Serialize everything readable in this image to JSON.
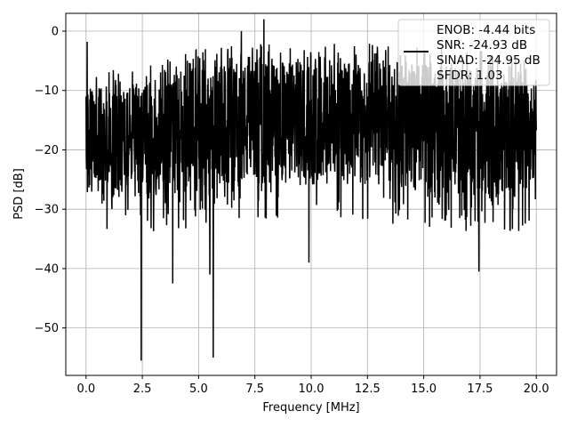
{
  "chart_data": {
    "type": "line",
    "xlabel": "Frequency [MHz]",
    "ylabel": "PSD [dB]",
    "xlim": [
      -0.9,
      20.9
    ],
    "ylim": [
      -58,
      3
    ],
    "xticks": [
      0.0,
      2.5,
      5.0,
      7.5,
      10.0,
      12.5,
      15.0,
      17.5,
      20.0
    ],
    "xtick_labels": [
      "0.0",
      "2.5",
      "5.0",
      "7.5",
      "10.0",
      "12.5",
      "15.0",
      "17.5",
      "20.0"
    ],
    "yticks": [
      0,
      -10,
      -20,
      -30,
      -40,
      -50
    ],
    "ytick_labels": [
      "0",
      "−10",
      "−20",
      "−30",
      "−40",
      "−50"
    ],
    "grid": true,
    "legend_position": "top-right",
    "series": [
      {
        "color": "#000000",
        "x_range": [
          0,
          20
        ],
        "band_upper": [
          [
            0,
            -10
          ],
          [
            2.5,
            -9
          ],
          [
            5,
            -6
          ],
          [
            7.5,
            -5
          ],
          [
            10,
            -5
          ],
          [
            12.5,
            -5
          ],
          [
            15,
            -5.5
          ],
          [
            17.5,
            -6
          ],
          [
            20,
            -8
          ]
        ],
        "band_lower": [
          [
            0,
            -28
          ],
          [
            2.5,
            -28
          ],
          [
            5,
            -27
          ],
          [
            7.5,
            -26
          ],
          [
            10,
            -25
          ],
          [
            12.5,
            -26
          ],
          [
            15,
            -27
          ],
          [
            17.5,
            -28
          ],
          [
            20,
            -28
          ]
        ],
        "notable_points": [
          {
            "x": 0.05,
            "y": -1.8
          },
          {
            "x": 2.45,
            "y": -55.5
          },
          {
            "x": 5.65,
            "y": -55.0
          },
          {
            "x": 6.9,
            "y": 0.0
          },
          {
            "x": 3.85,
            "y": -42.5
          },
          {
            "x": 5.5,
            "y": -41.0
          },
          {
            "x": 17.45,
            "y": -40.5
          },
          {
            "x": 9.9,
            "y": -39.0
          },
          {
            "x": 7.9,
            "y": 2.0
          }
        ]
      }
    ]
  },
  "legend": {
    "line_color": "#000000",
    "entries": [
      "ENOB: -4.44 bits",
      "SNR: -24.93 dB",
      "SINAD: -24.95 dB",
      "SFDR: 1.03"
    ]
  },
  "colors": {
    "background": "#ffffff",
    "line": "#000000",
    "grid": "#b0b0b0",
    "legend_border": "#cccccc"
  }
}
